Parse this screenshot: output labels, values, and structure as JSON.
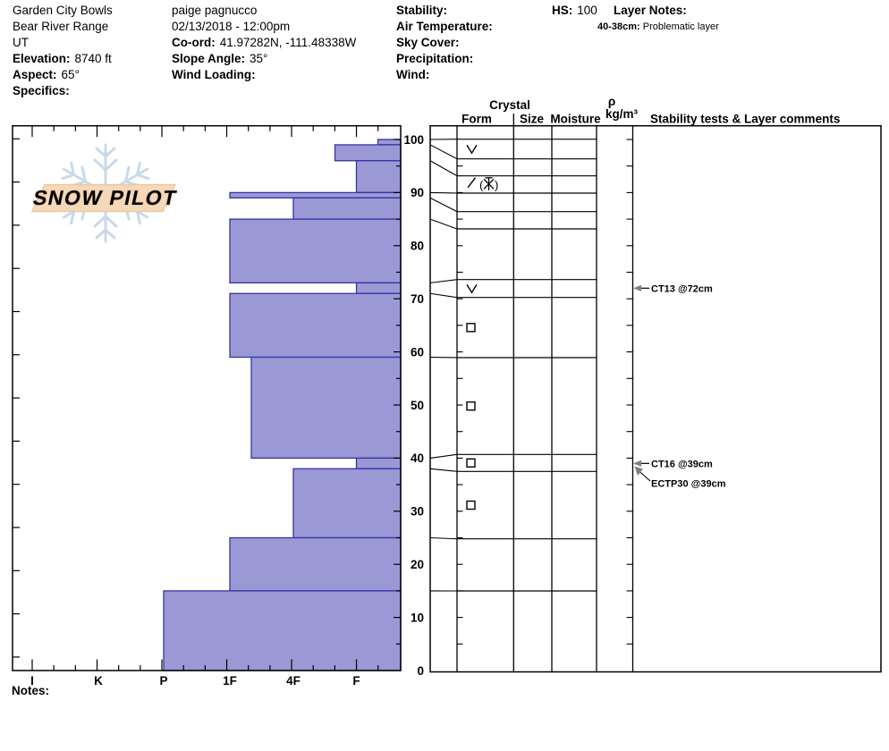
{
  "header": {
    "site": {
      "name": "Garden City Bowls",
      "range": "Bear River Range",
      "state": "UT",
      "elevation_label": "Elevation:",
      "elevation_value": "8740 ft",
      "aspect_label": "Aspect:",
      "aspect_value": "65°",
      "specifics_label": "Specifics:"
    },
    "observer": {
      "name": "paige pagnucco",
      "datetime": "02/13/2018 - 12:00pm",
      "coord_label": "Co-ord:",
      "coord_value": "41.97282N, -111.48338W",
      "slope_label": "Slope Angle:",
      "slope_value": "35°",
      "wind_loading_label": "Wind Loading:"
    },
    "conditions": {
      "stability_label": "Stability:",
      "air_temp_label": "Air Temperature:",
      "sky_label": "Sky Cover:",
      "precip_label": "Precipitation:",
      "wind_label": "Wind:"
    },
    "hs_label": "HS:",
    "hs_value": "100",
    "layer_notes_label": "Layer Notes:",
    "layer_note_range": "40-38cm:",
    "layer_note_text": "Problematic layer"
  },
  "logo": {
    "text": "SNOW PILOT",
    "banner_color": "#f5d8b8",
    "banner_edge_color": "#eac9a4",
    "flake_color": "#c9d9ea",
    "text_color": "#ffffff",
    "text_outline_color": "#d8b58e"
  },
  "chart_data": {
    "type": "bar",
    "title": "Snow pit hardness profile",
    "hs_cm": 100,
    "depth_axis": {
      "unit": "cm",
      "min": 0,
      "max": 100,
      "ticks": [
        100,
        90,
        80,
        70,
        60,
        50,
        40,
        30,
        20,
        10,
        0
      ]
    },
    "hardness_axis": {
      "categories": [
        "I",
        "K",
        "P",
        "1F",
        "4F",
        "F"
      ]
    },
    "layers": [
      {
        "top_cm": 100,
        "bottom_cm": 99,
        "hardness": "F-",
        "form": "SH",
        "glyph": "∨"
      },
      {
        "top_cm": 99,
        "bottom_cm": 96,
        "hardness": "F+",
        "form": "",
        "glyph": ""
      },
      {
        "top_cm": 96,
        "bottom_cm": 90,
        "hardness": "F",
        "form": "DF(PP)",
        "glyph": "/ (✳)"
      },
      {
        "top_cm": 90,
        "bottom_cm": 89,
        "hardness": "1F",
        "form": "",
        "glyph": ""
      },
      {
        "top_cm": 89,
        "bottom_cm": 85,
        "hardness": "4F",
        "form": "",
        "glyph": ""
      },
      {
        "top_cm": 85,
        "bottom_cm": 73,
        "hardness": "1F",
        "form": "",
        "glyph": ""
      },
      {
        "top_cm": 73,
        "bottom_cm": 71,
        "hardness": "F",
        "form": "SH",
        "glyph": "∨"
      },
      {
        "top_cm": 71,
        "bottom_cm": 59,
        "hardness": "1F",
        "form": "FC",
        "glyph": "□"
      },
      {
        "top_cm": 59,
        "bottom_cm": 40,
        "hardness": "1F-",
        "form": "FC",
        "glyph": "□"
      },
      {
        "top_cm": 40,
        "bottom_cm": 38,
        "hardness": "F",
        "form": "FC",
        "glyph": "□"
      },
      {
        "top_cm": 38,
        "bottom_cm": 25,
        "hardness": "4F",
        "form": "FC",
        "glyph": "□"
      },
      {
        "top_cm": 25,
        "bottom_cm": 15,
        "hardness": "1F",
        "form": "",
        "glyph": ""
      },
      {
        "top_cm": 15,
        "bottom_cm": 0,
        "hardness": "P",
        "form": "",
        "glyph": ""
      }
    ],
    "tests": [
      {
        "label": "CT13 @72cm",
        "depth_cm": 72
      },
      {
        "label": "CT16 @39cm",
        "depth_cm": 39
      },
      {
        "label": "ECTP30 @39cm",
        "depth_cm": 39
      }
    ],
    "table_headers": {
      "crystal": "Crystal",
      "form": "Form",
      "size": "Size",
      "moisture": "Moisture",
      "density_rho": "ρ",
      "density_unit": "kg/m³",
      "comments": "Stability tests & Layer comments"
    },
    "notes_label": "Notes:",
    "colors": {
      "bar_fill": "#9a99d6",
      "bar_stroke": "#3434a4",
      "line": "#000000",
      "arrowhead": "#808080"
    }
  }
}
